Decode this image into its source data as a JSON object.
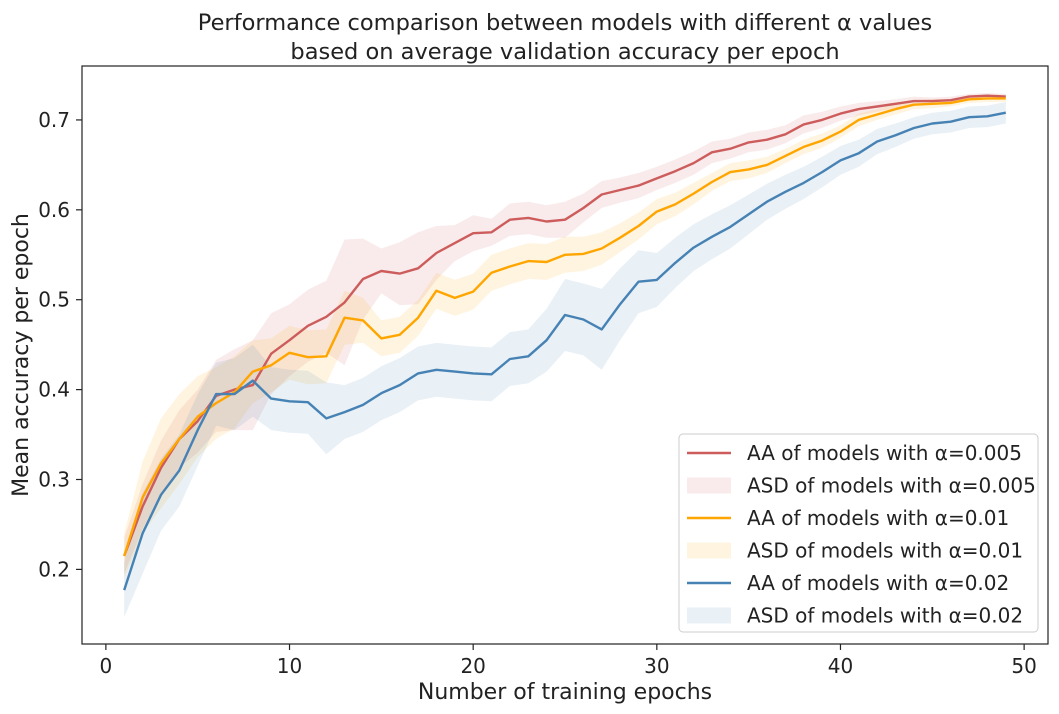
{
  "chart_data": {
    "type": "line",
    "title_line1": "Performance comparison between models with different α values",
    "title_line2": "based on average validation accuracy per epoch",
    "xlabel": "Number of training epochs",
    "ylabel": "Mean accuracy per epoch",
    "xlim": [
      -1.3,
      51.3
    ],
    "ylim": [
      0.117,
      0.76
    ],
    "xticks": [
      0,
      10,
      20,
      30,
      40,
      50
    ],
    "yticks": [
      0.2,
      0.3,
      0.4,
      0.5,
      0.6,
      0.7
    ],
    "grid": false,
    "legend_position": "bottom-right",
    "x": [
      1,
      2,
      3,
      4,
      5,
      6,
      7,
      8,
      9,
      10,
      11,
      12,
      13,
      14,
      15,
      16,
      17,
      18,
      19,
      20,
      21,
      22,
      23,
      24,
      25,
      26,
      27,
      28,
      29,
      30,
      31,
      32,
      33,
      34,
      35,
      36,
      37,
      38,
      39,
      40,
      41,
      42,
      43,
      44,
      45,
      46,
      47,
      48,
      49
    ],
    "series": [
      {
        "name": "AA of models with α=0.005",
        "band_name": "ASD of models with α=0.005",
        "color": "#cd5c5c",
        "values": [
          0.215,
          0.27,
          0.313,
          0.345,
          0.365,
          0.393,
          0.4,
          0.405,
          0.44,
          0.455,
          0.471,
          0.481,
          0.497,
          0.523,
          0.532,
          0.529,
          0.535,
          0.552,
          0.563,
          0.574,
          0.575,
          0.589,
          0.591,
          0.587,
          0.589,
          0.602,
          0.617,
          0.622,
          0.627,
          0.635,
          0.643,
          0.652,
          0.664,
          0.668,
          0.675,
          0.678,
          0.684,
          0.695,
          0.7,
          0.707,
          0.712,
          0.715,
          0.718,
          0.721,
          0.721,
          0.722,
          0.726,
          0.727,
          0.726
        ],
        "sd": [
          0.02,
          0.025,
          0.03,
          0.032,
          0.035,
          0.04,
          0.045,
          0.05,
          0.045,
          0.04,
          0.04,
          0.04,
          0.07,
          0.045,
          0.025,
          0.035,
          0.04,
          0.03,
          0.02,
          0.02,
          0.015,
          0.018,
          0.018,
          0.018,
          0.02,
          0.016,
          0.015,
          0.014,
          0.014,
          0.013,
          0.013,
          0.013,
          0.012,
          0.011,
          0.011,
          0.011,
          0.01,
          0.01,
          0.009,
          0.008,
          0.007,
          0.006,
          0.005,
          0.005,
          0.004,
          0.004,
          0.003,
          0.003,
          0.003
        ]
      },
      {
        "name": "AA of models with α=0.01",
        "band_name": "ASD of models with α=0.01",
        "color": "#ffa500",
        "values": [
          0.215,
          0.28,
          0.318,
          0.345,
          0.37,
          0.385,
          0.397,
          0.42,
          0.427,
          0.441,
          0.436,
          0.437,
          0.48,
          0.477,
          0.457,
          0.461,
          0.48,
          0.51,
          0.502,
          0.509,
          0.53,
          0.537,
          0.543,
          0.542,
          0.55,
          0.551,
          0.557,
          0.569,
          0.582,
          0.598,
          0.606,
          0.618,
          0.631,
          0.642,
          0.645,
          0.65,
          0.66,
          0.67,
          0.677,
          0.687,
          0.7,
          0.706,
          0.712,
          0.717,
          0.718,
          0.719,
          0.723,
          0.724,
          0.724
        ],
        "sd": [
          0.025,
          0.04,
          0.05,
          0.05,
          0.045,
          0.04,
          0.04,
          0.035,
          0.03,
          0.03,
          0.03,
          0.03,
          0.03,
          0.025,
          0.02,
          0.02,
          0.02,
          0.02,
          0.02,
          0.02,
          0.02,
          0.02,
          0.02,
          0.02,
          0.02,
          0.019,
          0.018,
          0.016,
          0.015,
          0.014,
          0.013,
          0.012,
          0.01,
          0.01,
          0.01,
          0.009,
          0.008,
          0.008,
          0.008,
          0.007,
          0.007,
          0.006,
          0.006,
          0.005,
          0.005,
          0.004,
          0.004,
          0.004,
          0.004
        ]
      },
      {
        "name": "AA of models with α=0.02",
        "band_name": "ASD of models with α=0.02",
        "color": "#4682b4",
        "values": [
          0.177,
          0.24,
          0.283,
          0.31,
          0.355,
          0.395,
          0.395,
          0.41,
          0.39,
          0.387,
          0.386,
          0.368,
          0.375,
          0.383,
          0.396,
          0.405,
          0.418,
          0.422,
          0.42,
          0.418,
          0.417,
          0.434,
          0.437,
          0.455,
          0.483,
          0.478,
          0.467,
          0.495,
          0.52,
          0.522,
          0.541,
          0.558,
          0.57,
          0.581,
          0.595,
          0.609,
          0.62,
          0.63,
          0.642,
          0.655,
          0.663,
          0.676,
          0.683,
          0.691,
          0.696,
          0.698,
          0.703,
          0.704,
          0.708
        ],
        "sd": [
          0.03,
          0.045,
          0.04,
          0.04,
          0.04,
          0.035,
          0.04,
          0.04,
          0.035,
          0.035,
          0.035,
          0.04,
          0.03,
          0.03,
          0.03,
          0.03,
          0.03,
          0.03,
          0.03,
          0.03,
          0.03,
          0.03,
          0.03,
          0.035,
          0.04,
          0.04,
          0.045,
          0.04,
          0.035,
          0.03,
          0.028,
          0.026,
          0.025,
          0.024,
          0.022,
          0.02,
          0.019,
          0.018,
          0.017,
          0.016,
          0.015,
          0.014,
          0.013,
          0.012,
          0.012,
          0.012,
          0.012,
          0.012,
          0.012
        ]
      }
    ]
  }
}
